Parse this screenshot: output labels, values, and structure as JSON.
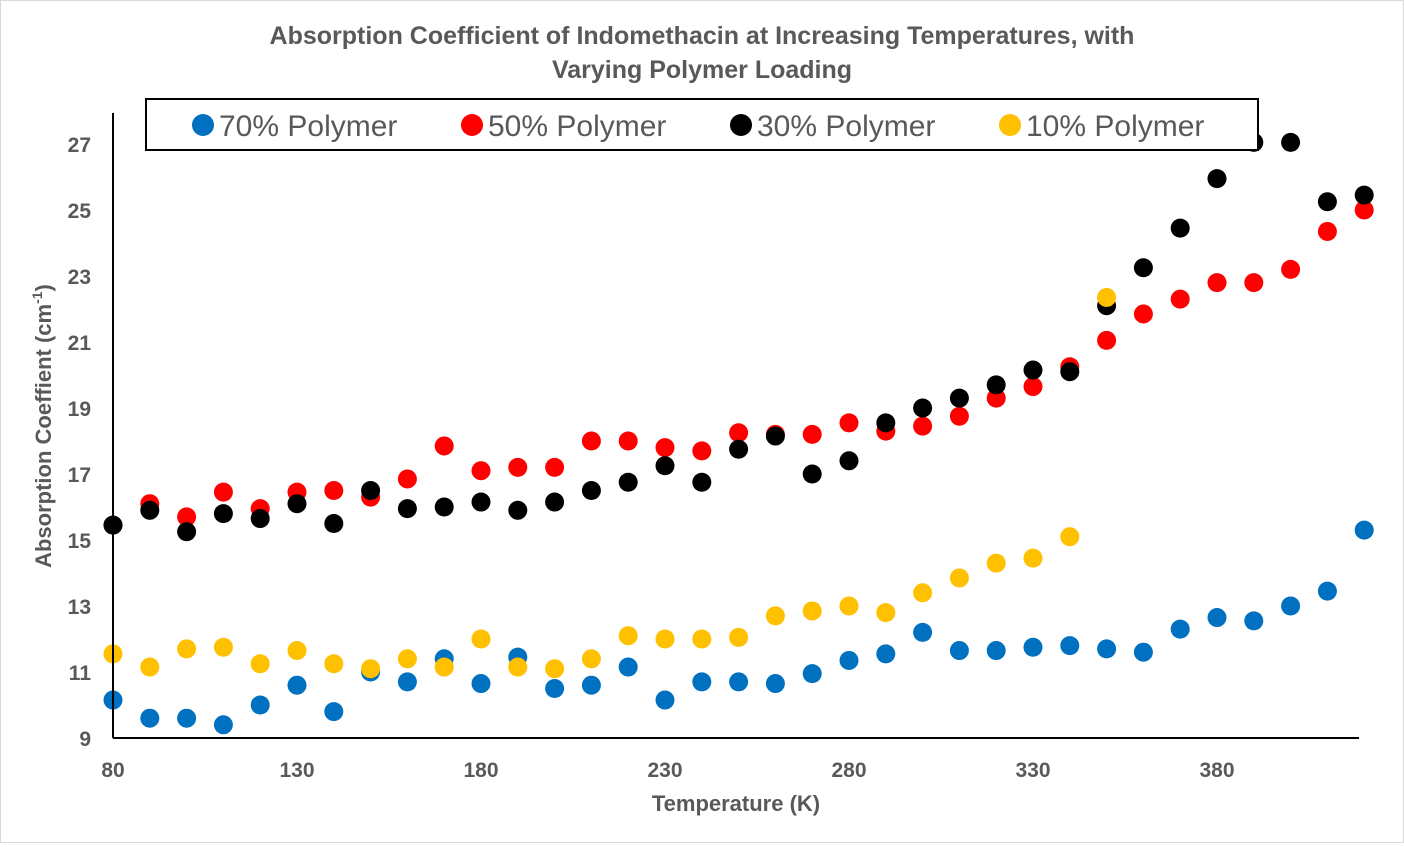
{
  "chart_data": {
    "type": "scatter",
    "title_line1": "Absorption Coefficient of Indomethacin at Increasing Temperatures, with",
    "title_line2": "Varying Polymer Loading",
    "xlabel": "Temperature (K)",
    "ylabel_main": "Absorption Coeffient (cm",
    "ylabel_sup": "-1",
    "ylabel_end": ")",
    "xlim": [
      80,
      420
    ],
    "ylim": [
      9,
      28
    ],
    "x_ticks": [
      80,
      130,
      180,
      230,
      280,
      330,
      380
    ],
    "y_ticks": [
      9,
      11,
      13,
      15,
      17,
      19,
      21,
      23,
      25,
      27
    ],
    "grid": false,
    "legend_position": "top",
    "series": [
      {
        "name": "70% Polymer",
        "color": "#0070C0",
        "points": [
          [
            80,
            10.15
          ],
          [
            90,
            9.6
          ],
          [
            100,
            9.6
          ],
          [
            110,
            9.4
          ],
          [
            120,
            10.0
          ],
          [
            130,
            10.6
          ],
          [
            140,
            9.8
          ],
          [
            150,
            11.0
          ],
          [
            160,
            10.7
          ],
          [
            170,
            11.4
          ],
          [
            180,
            10.65
          ],
          [
            190,
            11.45
          ],
          [
            200,
            10.5
          ],
          [
            210,
            10.6
          ],
          [
            220,
            11.15
          ],
          [
            230,
            10.15
          ],
          [
            240,
            10.7
          ],
          [
            250,
            10.7
          ],
          [
            260,
            10.65
          ],
          [
            270,
            10.95
          ],
          [
            280,
            11.35
          ],
          [
            290,
            11.55
          ],
          [
            300,
            12.2
          ],
          [
            310,
            11.65
          ],
          [
            320,
            11.65
          ],
          [
            330,
            11.75
          ],
          [
            340,
            11.8
          ],
          [
            350,
            11.7
          ],
          [
            360,
            11.6
          ],
          [
            370,
            12.3
          ],
          [
            380,
            12.65
          ],
          [
            390,
            12.55
          ],
          [
            400,
            13.0
          ],
          [
            410,
            13.45
          ],
          [
            420,
            15.3
          ]
        ]
      },
      {
        "name": "50% Polymer",
        "color": "#FF0000",
        "points": [
          [
            80,
            15.45
          ],
          [
            90,
            16.1
          ],
          [
            100,
            15.7
          ],
          [
            110,
            16.45
          ],
          [
            120,
            15.95
          ],
          [
            130,
            16.45
          ],
          [
            140,
            16.5
          ],
          [
            150,
            16.3
          ],
          [
            160,
            16.85
          ],
          [
            170,
            17.85
          ],
          [
            180,
            17.1
          ],
          [
            190,
            17.2
          ],
          [
            200,
            17.2
          ],
          [
            210,
            18.0
          ],
          [
            220,
            18.0
          ],
          [
            230,
            17.8
          ],
          [
            240,
            17.7
          ],
          [
            250,
            18.25
          ],
          [
            260,
            18.2
          ],
          [
            270,
            18.2
          ],
          [
            280,
            18.55
          ],
          [
            290,
            18.3
          ],
          [
            300,
            18.45
          ],
          [
            310,
            18.75
          ],
          [
            320,
            19.3
          ],
          [
            330,
            19.65
          ],
          [
            340,
            20.25
          ],
          [
            350,
            21.05
          ],
          [
            360,
            21.85
          ],
          [
            370,
            22.3
          ],
          [
            380,
            22.8
          ],
          [
            390,
            22.8
          ],
          [
            400,
            23.2
          ],
          [
            410,
            24.35
          ],
          [
            420,
            25.0
          ]
        ]
      },
      {
        "name": "30% Polymer",
        "color": "#000000",
        "points": [
          [
            80,
            15.45
          ],
          [
            90,
            15.9
          ],
          [
            100,
            15.25
          ],
          [
            110,
            15.8
          ],
          [
            120,
            15.65
          ],
          [
            130,
            16.1
          ],
          [
            140,
            15.5
          ],
          [
            150,
            16.5
          ],
          [
            160,
            15.95
          ],
          [
            170,
            16.0
          ],
          [
            180,
            16.15
          ],
          [
            190,
            15.9
          ],
          [
            200,
            16.15
          ],
          [
            210,
            16.5
          ],
          [
            220,
            16.75
          ],
          [
            230,
            17.25
          ],
          [
            240,
            16.75
          ],
          [
            250,
            17.75
          ],
          [
            260,
            18.15
          ],
          [
            270,
            17.0
          ],
          [
            280,
            17.4
          ],
          [
            290,
            18.55
          ],
          [
            300,
            19.0
          ],
          [
            310,
            19.3
          ],
          [
            320,
            19.7
          ],
          [
            330,
            20.15
          ],
          [
            340,
            20.1
          ],
          [
            350,
            22.1
          ],
          [
            360,
            23.25
          ],
          [
            370,
            24.45
          ],
          [
            380,
            25.95
          ],
          [
            390,
            27.05
          ],
          [
            400,
            27.05
          ],
          [
            410,
            25.25
          ],
          [
            420,
            25.45
          ]
        ]
      },
      {
        "name": "10% Polymer",
        "color": "#FFC000",
        "points": [
          [
            80,
            11.55
          ],
          [
            90,
            11.15
          ],
          [
            100,
            11.7
          ],
          [
            110,
            11.75
          ],
          [
            120,
            11.25
          ],
          [
            130,
            11.65
          ],
          [
            140,
            11.25
          ],
          [
            150,
            11.1
          ],
          [
            160,
            11.4
          ],
          [
            170,
            11.15
          ],
          [
            180,
            12.0
          ],
          [
            190,
            11.15
          ],
          [
            200,
            11.1
          ],
          [
            210,
            11.4
          ],
          [
            220,
            12.1
          ],
          [
            230,
            12.0
          ],
          [
            240,
            12.0
          ],
          [
            250,
            12.05
          ],
          [
            260,
            12.7
          ],
          [
            270,
            12.85
          ],
          [
            280,
            13.0
          ],
          [
            290,
            12.8
          ],
          [
            300,
            13.4
          ],
          [
            310,
            13.85
          ],
          [
            320,
            14.3
          ],
          [
            330,
            14.45
          ],
          [
            340,
            15.1
          ],
          [
            350,
            22.35
          ]
        ]
      }
    ]
  }
}
